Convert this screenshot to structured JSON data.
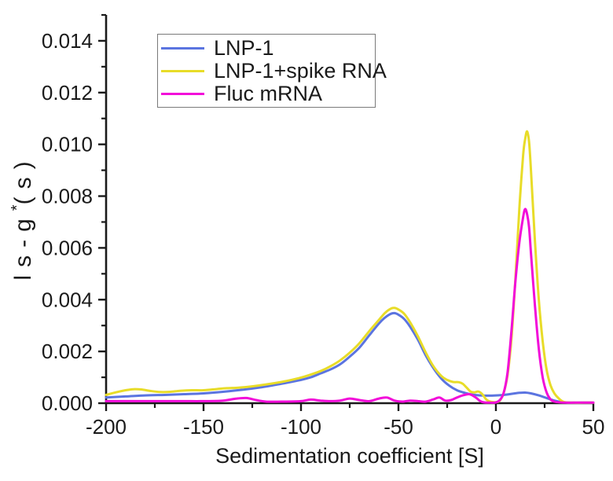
{
  "chart_data": {
    "type": "line",
    "title": "",
    "xlabel": "Sedimentation coefficient [S]",
    "ylabel": "ls-g*(s)",
    "xlim": [
      -200,
      50
    ],
    "ylim": [
      0,
      0.015
    ],
    "grid": false,
    "legend_position": "top-left-inside",
    "axis_color": "#1a1a1a",
    "x_ticks": {
      "values": [
        -200,
        -150,
        -100,
        -50,
        0,
        50
      ],
      "labels": [
        "-200",
        "-150",
        "-100",
        "-50",
        "0",
        "50"
      ],
      "minor": [
        -175,
        -125,
        -75,
        -25,
        25
      ]
    },
    "y_ticks": {
      "values": [
        0,
        0.002,
        0.004,
        0.006,
        0.008,
        0.01,
        0.012,
        0.014
      ],
      "labels": [
        "0.000",
        "0.002",
        "0.004",
        "0.006",
        "0.008",
        "0.010",
        "0.012",
        "0.014"
      ],
      "minor": [
        0.001,
        0.003,
        0.005,
        0.007,
        0.009,
        0.011,
        0.013,
        0.015
      ]
    },
    "series": [
      {
        "name": "LNP-1",
        "color": "#5b74e0",
        "points": [
          [
            -200,
            0.00022
          ],
          [
            -190,
            0.00026
          ],
          [
            -180,
            0.0003
          ],
          [
            -170,
            0.00032
          ],
          [
            -160,
            0.00035
          ],
          [
            -150,
            0.00038
          ],
          [
            -140,
            0.00044
          ],
          [
            -130,
            0.00052
          ],
          [
            -120,
            0.00062
          ],
          [
            -110,
            0.00075
          ],
          [
            -100,
            0.0009
          ],
          [
            -95,
            0.001
          ],
          [
            -90,
            0.00115
          ],
          [
            -85,
            0.0013
          ],
          [
            -80,
            0.0015
          ],
          [
            -75,
            0.0018
          ],
          [
            -70,
            0.00215
          ],
          [
            -65,
            0.00262
          ],
          [
            -60,
            0.00308
          ],
          [
            -57,
            0.0033
          ],
          [
            -54,
            0.00345
          ],
          [
            -52,
            0.00348
          ],
          [
            -50,
            0.00342
          ],
          [
            -47,
            0.00325
          ],
          [
            -44,
            0.00295
          ],
          [
            -40,
            0.00245
          ],
          [
            -36,
            0.00185
          ],
          [
            -32,
            0.00135
          ],
          [
            -28,
            0.00095
          ],
          [
            -24,
            0.00068
          ],
          [
            -20,
            0.0005
          ],
          [
            -16,
            0.0004
          ],
          [
            -12,
            0.00033
          ],
          [
            -8,
            0.0003
          ],
          [
            -4,
            0.00029
          ],
          [
            0,
            0.0003
          ],
          [
            4,
            0.00032
          ],
          [
            8,
            0.00036
          ],
          [
            12,
            0.0004
          ],
          [
            15,
            0.00041
          ],
          [
            18,
            0.00038
          ],
          [
            22,
            0.0003
          ],
          [
            26,
            0.0002
          ],
          [
            30,
            0.0001
          ],
          [
            34,
            4e-05
          ],
          [
            38,
            2e-05
          ],
          [
            44,
            2e-05
          ],
          [
            50,
            2e-05
          ]
        ]
      },
      {
        "name": "LNP-1+spike RNA",
        "color": "#e8dc28",
        "points": [
          [
            -200,
            0.00032
          ],
          [
            -195,
            0.00042
          ],
          [
            -190,
            0.0005
          ],
          [
            -186,
            0.00054
          ],
          [
            -182,
            0.00053
          ],
          [
            -177,
            0.00047
          ],
          [
            -172,
            0.00043
          ],
          [
            -167,
            0.00044
          ],
          [
            -162,
            0.00048
          ],
          [
            -156,
            0.0005
          ],
          [
            -150,
            0.0005
          ],
          [
            -144,
            0.00054
          ],
          [
            -138,
            0.00058
          ],
          [
            -132,
            0.0006
          ],
          [
            -126,
            0.00064
          ],
          [
            -120,
            0.0007
          ],
          [
            -114,
            0.00077
          ],
          [
            -108,
            0.00085
          ],
          [
            -102,
            0.00095
          ],
          [
            -96,
            0.00108
          ],
          [
            -90,
            0.00124
          ],
          [
            -85,
            0.00142
          ],
          [
            -80,
            0.00165
          ],
          [
            -75,
            0.00195
          ],
          [
            -70,
            0.00232
          ],
          [
            -65,
            0.00278
          ],
          [
            -60,
            0.00322
          ],
          [
            -57,
            0.00348
          ],
          [
            -54,
            0.00365
          ],
          [
            -52,
            0.00368
          ],
          [
            -50,
            0.00362
          ],
          [
            -47,
            0.00345
          ],
          [
            -44,
            0.00312
          ],
          [
            -40,
            0.00258
          ],
          [
            -36,
            0.00196
          ],
          [
            -32,
            0.00142
          ],
          [
            -28,
            0.00105
          ],
          [
            -25,
            0.0009
          ],
          [
            -22,
            0.00082
          ],
          [
            -19,
            0.00081
          ],
          [
            -17,
            0.00075
          ],
          [
            -15,
            0.0006
          ],
          [
            -13,
            0.00045
          ],
          [
            -11,
            0.00042
          ],
          [
            -9,
            0.00045
          ],
          [
            -7,
            0.00035
          ],
          [
            -5,
            0.00015
          ],
          [
            -3,
            6e-05
          ],
          [
            0,
            4e-05
          ],
          [
            2,
            0.0001
          ],
          [
            4,
            0.0004
          ],
          [
            6,
            0.0011
          ],
          [
            8,
            0.0025
          ],
          [
            10,
            0.0048
          ],
          [
            12,
            0.0075
          ],
          [
            14,
            0.0096
          ],
          [
            15,
            0.0102
          ],
          [
            16,
            0.0105
          ],
          [
            17,
            0.0101
          ],
          [
            18,
            0.009
          ],
          [
            20,
            0.0063
          ],
          [
            22,
            0.004
          ],
          [
            24,
            0.0024
          ],
          [
            26,
            0.0013
          ],
          [
            28,
            0.0007
          ],
          [
            30,
            0.00038
          ],
          [
            32,
            0.0002
          ],
          [
            34,
            8e-05
          ],
          [
            36,
            3e-05
          ],
          [
            40,
            2e-05
          ],
          [
            45,
            2e-05
          ],
          [
            50,
            2e-05
          ]
        ]
      },
      {
        "name": "Fluc mRNA",
        "color": "#f20cd9",
        "points": [
          [
            -200,
            8e-05
          ],
          [
            -190,
            8e-05
          ],
          [
            -180,
            8e-05
          ],
          [
            -170,
            8e-05
          ],
          [
            -160,
            8e-05
          ],
          [
            -150,
            8e-05
          ],
          [
            -140,
            0.0001
          ],
          [
            -133,
            0.00018
          ],
          [
            -128,
            0.0002
          ],
          [
            -123,
            0.00012
          ],
          [
            -118,
            6e-05
          ],
          [
            -110,
            6e-05
          ],
          [
            -100,
            8e-05
          ],
          [
            -95,
            0.00014
          ],
          [
            -90,
            0.0001
          ],
          [
            -85,
            8e-05
          ],
          [
            -80,
            0.0001
          ],
          [
            -75,
            0.00018
          ],
          [
            -70,
            0.00012
          ],
          [
            -65,
            8e-05
          ],
          [
            -60,
            0.00018
          ],
          [
            -56,
            0.00022
          ],
          [
            -52,
            0.0001
          ],
          [
            -48,
            6e-05
          ],
          [
            -44,
            0.0001
          ],
          [
            -40,
            8e-05
          ],
          [
            -36,
            6e-05
          ],
          [
            -32,
            0.00015
          ],
          [
            -29,
            0.00022
          ],
          [
            -26,
            0.0001
          ],
          [
            -23,
            0.00012
          ],
          [
            -20,
            0.00022
          ],
          [
            -17,
            0.0003
          ],
          [
            -14,
            0.00035
          ],
          [
            -12,
            0.0003
          ],
          [
            -10,
            0.0002
          ],
          [
            -8,
            8e-05
          ],
          [
            -6,
            3e-05
          ],
          [
            -3,
            2e-05
          ],
          [
            0,
            3e-05
          ],
          [
            2,
            0.00012
          ],
          [
            4,
            0.0004
          ],
          [
            6,
            0.0012
          ],
          [
            8,
            0.0028
          ],
          [
            10,
            0.0047
          ],
          [
            12,
            0.0062
          ],
          [
            14,
            0.0072
          ],
          [
            15,
            0.0075
          ],
          [
            16,
            0.0073
          ],
          [
            17,
            0.0068
          ],
          [
            18,
            0.0058
          ],
          [
            20,
            0.0038
          ],
          [
            22,
            0.0021
          ],
          [
            24,
            0.001
          ],
          [
            26,
            0.00042
          ],
          [
            28,
            0.00015
          ],
          [
            30,
            6e-05
          ],
          [
            33,
            3e-05
          ],
          [
            36,
            2e-05
          ],
          [
            40,
            2e-05
          ],
          [
            45,
            2e-05
          ],
          [
            50,
            2e-05
          ]
        ]
      }
    ]
  }
}
